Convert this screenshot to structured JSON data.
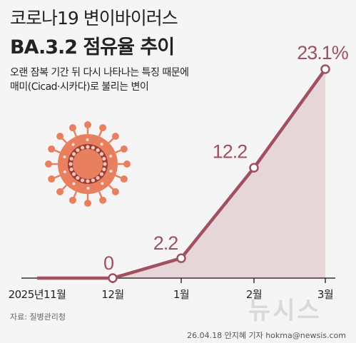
{
  "header": {
    "title_line1": "코로나19 변이바이러스",
    "title_line2": "BA.3.2 점유율 추이",
    "subtitle_line1": "오랜 잠복 기간 뒤 다시 나타나는 특징 때문에",
    "subtitle_line2": "매미(Cicad·시카다)로 불리는 변이"
  },
  "footer": {
    "source": "자료: 질병관리청",
    "credit": "26.04.18 안지혜 기자 hokma@newsis.com",
    "watermark": "뉴시스"
  },
  "colors": {
    "line": "#a0505f",
    "area": "#e7d6d8",
    "label": "#a0505f",
    "axis": "#333333",
    "virus": "#e8805f",
    "virus_dark": "#9a3c3a"
  },
  "chart_data": {
    "type": "area",
    "title": "BA.3.2 점유율 추이",
    "categories": [
      "2025년11월",
      "12월",
      "1월",
      "2월",
      "3월"
    ],
    "values": [
      0,
      0,
      2.2,
      12.2,
      23.1
    ],
    "value_labels": [
      "",
      "0",
      "2.2",
      "12.2",
      "23.1%"
    ],
    "xlabel": "",
    "ylabel": "",
    "ylim": [
      0,
      25
    ],
    "grid": false,
    "legend": "none"
  }
}
